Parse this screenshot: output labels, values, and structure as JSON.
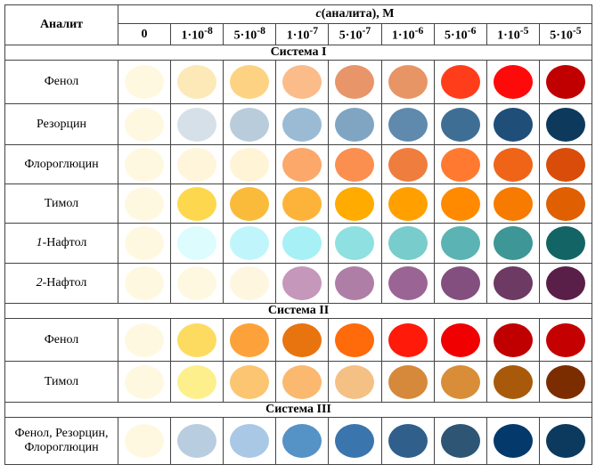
{
  "header": {
    "analyte": "Аналит",
    "title_var": "c",
    "title_rest": "(аналита), М",
    "concentrations": [
      {
        "base": "0",
        "exp": ""
      },
      {
        "base": "1·10",
        "exp": "-8"
      },
      {
        "base": "5·10",
        "exp": "-8"
      },
      {
        "base": "1·10",
        "exp": "-7"
      },
      {
        "base": "5·10",
        "exp": "-7"
      },
      {
        "base": "1·10",
        "exp": "-6"
      },
      {
        "base": "5·10",
        "exp": "-6"
      },
      {
        "base": "1·10",
        "exp": "-5"
      },
      {
        "base": "5·10",
        "exp": "-5"
      }
    ]
  },
  "sections": [
    {
      "title": "Система I",
      "rows": [
        {
          "prefix": "",
          "name": "Фенол",
          "colors": [
            "#fff8e1",
            "#fde8b8",
            "#fdd383",
            "#fbbc8a",
            "#e8956a",
            "#e89566",
            "#ff3d1a",
            "#ff0a0a",
            "#c00000"
          ]
        },
        {
          "prefix": "",
          "name": "Резорцин",
          "colors": [
            "#fff8e1",
            "#d6e0e8",
            "#b9ccdc",
            "#9bbbd4",
            "#7fa5c3",
            "#5f8aad",
            "#3f6e95",
            "#1f4e79",
            "#0d3a5c"
          ]
        },
        {
          "prefix": "",
          "name": "Флороглюцин",
          "colors": [
            "#fff8e1",
            "#fff5db",
            "#fff4d6",
            "#fba86a",
            "#fb8f4f",
            "#ef7d3e",
            "#ff7a30",
            "#f06418",
            "#d94c0a"
          ]
        },
        {
          "prefix": "",
          "name": "Тимол",
          "colors": [
            "#fff8e1",
            "#fdd84e",
            "#fbbb3a",
            "#fdb33a",
            "#ffab00",
            "#ffa000",
            "#ff8a00",
            "#f77b00",
            "#e05f00"
          ]
        },
        {
          "prefix": "1",
          "name": "-Нафтол",
          "colors": [
            "#fff8e1",
            "#dcfcfe",
            "#c0f6fb",
            "#a7f0f5",
            "#8fe0e0",
            "#78cccc",
            "#5cb3b3",
            "#3e9696",
            "#136565"
          ]
        },
        {
          "prefix": "2",
          "name": "-Нафтол",
          "colors": [
            "#fff8e1",
            "#fff8e1",
            "#fff6e0",
            "#c497bb",
            "#ae7ea6",
            "#9a6595",
            "#834f7e",
            "#6c3a63",
            "#5a1f48"
          ]
        }
      ]
    },
    {
      "title": "Система II",
      "rows": [
        {
          "prefix": "",
          "name": "Фенол",
          "colors": [
            "#fff8e1",
            "#fddb60",
            "#fda23a",
            "#e87410",
            "#ff6a0a",
            "#ff1a0a",
            "#f00000",
            "#c00000",
            "#c40000"
          ]
        },
        {
          "prefix": "",
          "name": "Тимол",
          "colors": [
            "#fff8e1",
            "#fdf08c",
            "#fcc572",
            "#fbb96f",
            "#f5c084",
            "#d6893a",
            "#d98d38",
            "#a85a0a",
            "#7b2d00"
          ]
        }
      ]
    },
    {
      "title": "Система III",
      "rows": [
        {
          "prefix": "",
          "name": "Фенол, Резорцин, Флороглюцин",
          "colors": [
            "#fff8e1",
            "#b9cde0",
            "#a9c8e6",
            "#5592c6",
            "#3a75ad",
            "#305f8c",
            "#2e5574",
            "#04396b",
            "#0b3a5e"
          ]
        }
      ]
    }
  ]
}
